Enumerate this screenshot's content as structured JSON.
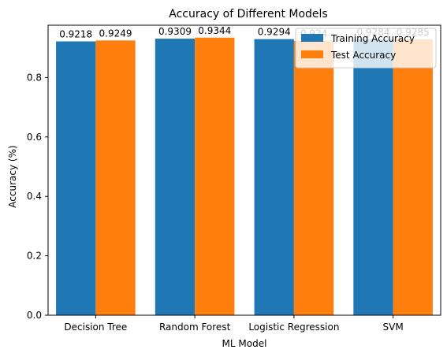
{
  "chart_data": {
    "type": "bar",
    "title": "Accuracy of Different Models",
    "xlabel": "ML Model",
    "ylabel": "Accuracy (%)",
    "categories": [
      "Decision Tree",
      "Random Forest",
      "Logistic Regression",
      "SVM"
    ],
    "series": [
      {
        "name": "Training Accuracy",
        "color": "#1f77b4",
        "values": [
          0.9218,
          0.9309,
          0.9294,
          0.9284
        ],
        "labels": [
          "0.9218",
          "0.9309",
          "0.9294",
          "0.9284"
        ]
      },
      {
        "name": "Test Accuracy",
        "color": "#ff7f0e",
        "values": [
          0.9249,
          0.9344,
          0.924,
          0.9285
        ],
        "labels": [
          "0.9249",
          "0.9344",
          "0.924",
          "0.9285"
        ]
      }
    ],
    "ylim": [
      0,
      0.9762
    ],
    "yticks": [
      0.0,
      0.2,
      0.4,
      0.6,
      0.8
    ],
    "ytick_labels": [
      "0.0",
      "0.2",
      "0.4",
      "0.6",
      "0.8"
    ],
    "grid": false,
    "legend_position": "top-right"
  }
}
